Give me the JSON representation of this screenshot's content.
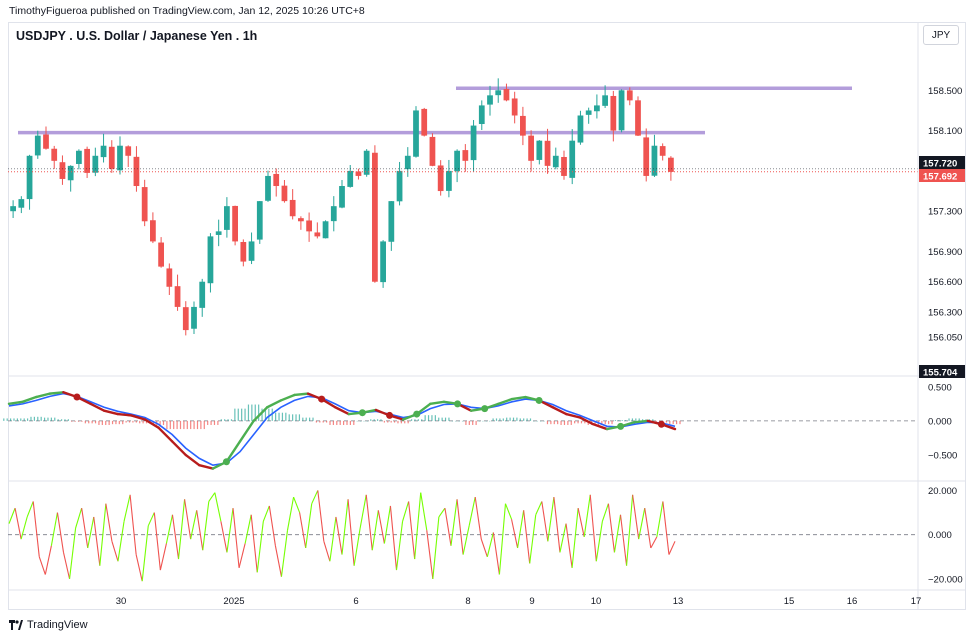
{
  "header": {
    "publisher": "TimothyFigueroa published on TradingView.com, Jan 12, 2025 10:26 UTC+8",
    "title": "USDJPY . U.S. Dollar / Japanese Yen . 1h",
    "currency_button": "JPY"
  },
  "footer": {
    "brand": "TradingView"
  },
  "colors": {
    "up": "#26a69a",
    "down": "#ef5350",
    "level": "#b39ddb",
    "lastPriceBg": "#131722",
    "currentPriceBg": "#ef5350"
  },
  "chart_data": [
    {
      "type": "candlestick",
      "y_ticks": [
        158.5,
        158.1,
        157.3,
        156.9,
        156.6,
        156.3,
        156.05
      ],
      "y_tick_labels": [
        "158.500",
        "158.100",
        "157.300",
        "156.900",
        "156.600",
        "156.300",
        "156.050"
      ],
      "price_labels": [
        {
          "value": 157.72,
          "text": "157.720",
          "role": "last"
        },
        {
          "value": 157.692,
          "text": "157.692",
          "role": "current"
        },
        {
          "value": 155.704,
          "text": "155.704",
          "role": "low"
        }
      ],
      "x_tick_labels": [
        "30",
        "2025",
        "6",
        "8",
        "9",
        "10",
        "13",
        "15",
        "16",
        "17"
      ],
      "horizontal_levels": [
        158.52,
        158.08
      ],
      "close_path": [
        157.35,
        157.42,
        157.85,
        158.05,
        157.92,
        157.8,
        157.62,
        157.75,
        157.9,
        157.68,
        157.85,
        157.95,
        157.72,
        157.95,
        157.85,
        157.55,
        157.2,
        157.0,
        156.75,
        156.55,
        156.35,
        156.12,
        156.35,
        156.6,
        157.05,
        157.1,
        157.35,
        157.0,
        156.8,
        157.0,
        157.4,
        157.65,
        157.55,
        157.4,
        157.25,
        157.2,
        157.1,
        157.05,
        157.2,
        157.35,
        157.55,
        157.7,
        157.65,
        157.9,
        156.6,
        157.0,
        157.4,
        157.7,
        157.85,
        158.3,
        158.05,
        157.75,
        157.5,
        157.7,
        157.9,
        157.8,
        158.15,
        158.35,
        158.45,
        158.5,
        158.4,
        158.25,
        158.05,
        157.8,
        158.0,
        157.75,
        157.85,
        157.65,
        158.0,
        158.25,
        158.3,
        158.35,
        158.45,
        158.1,
        158.5,
        158.4,
        158.05,
        157.65,
        157.95,
        157.85,
        157.69
      ],
      "x_range": [
        "Dec 26",
        "Jan 17"
      ],
      "y_range": [
        155.704,
        158.9
      ]
    },
    {
      "type": "line",
      "indicator": "macd-style oscillator",
      "y_ticks": [
        0.5,
        0,
        -0.5
      ],
      "y_tick_labels": [
        "0.500",
        "0.000",
        "−0.500"
      ],
      "fast_line": [
        0.25,
        0.28,
        0.35,
        0.4,
        0.42,
        0.35,
        0.25,
        0.15,
        0.1,
        0.08,
        0.02,
        -0.1,
        -0.3,
        -0.5,
        -0.65,
        -0.7,
        -0.6,
        -0.3,
        0.0,
        0.2,
        0.3,
        0.38,
        0.4,
        0.32,
        0.2,
        0.1,
        0.12,
        0.16,
        0.08,
        0.02,
        0.1,
        0.25,
        0.28,
        0.25,
        0.15,
        0.18,
        0.25,
        0.32,
        0.35,
        0.3,
        0.2,
        0.1,
        0.05,
        -0.05,
        -0.12,
        -0.08,
        -0.02,
        0.0,
        -0.05,
        -0.12
      ],
      "slow_line": [
        0.22,
        0.25,
        0.3,
        0.36,
        0.4,
        0.36,
        0.28,
        0.2,
        0.14,
        0.1,
        0.05,
        -0.05,
        -0.2,
        -0.4,
        -0.55,
        -0.65,
        -0.62,
        -0.45,
        -0.2,
        0.05,
        0.2,
        0.3,
        0.36,
        0.34,
        0.25,
        0.15,
        0.12,
        0.14,
        0.1,
        0.05,
        0.08,
        0.18,
        0.24,
        0.25,
        0.2,
        0.18,
        0.22,
        0.28,
        0.32,
        0.3,
        0.24,
        0.15,
        0.08,
        0.0,
        -0.08,
        -0.09,
        -0.05,
        -0.02,
        -0.03,
        -0.08
      ],
      "ylim": [
        -0.75,
        0.6
      ]
    },
    {
      "type": "line",
      "indicator": "momentum oscillator",
      "y_ticks": [
        20,
        0,
        -20
      ],
      "y_tick_labels": [
        "20.000",
        "0.000",
        "−20.000"
      ],
      "values": [
        5,
        12,
        -2,
        8,
        15,
        -10,
        -18,
        -5,
        10,
        -8,
        -20,
        3,
        12,
        -6,
        8,
        -14,
        14,
        -3,
        -12,
        6,
        18,
        -9,
        -21,
        4,
        10,
        -16,
        -4,
        9,
        -11,
        16,
        -2,
        11,
        -7,
        15,
        19,
        6,
        -8,
        12,
        -15,
        -4,
        9,
        -17,
        6,
        13,
        -5,
        -19,
        2,
        17,
        10,
        -6,
        14,
        20,
        -3,
        -12,
        8,
        -9,
        16,
        -14,
        3,
        18,
        -7,
        11,
        -4,
        13,
        -16,
        6,
        15,
        -11,
        19,
        2,
        -20,
        8,
        12,
        -5,
        16,
        -9,
        4,
        17,
        -2,
        -10,
        1,
        -18,
        14,
        7,
        -6,
        11,
        -13,
        9,
        15,
        -3,
        17,
        -8,
        5,
        -15,
        12,
        -1,
        18,
        -12,
        6,
        14,
        -8,
        9,
        -14,
        18,
        -2,
        12,
        -6,
        -1,
        15,
        -9,
        -3
      ],
      "ylim": [
        -25,
        22
      ]
    }
  ]
}
